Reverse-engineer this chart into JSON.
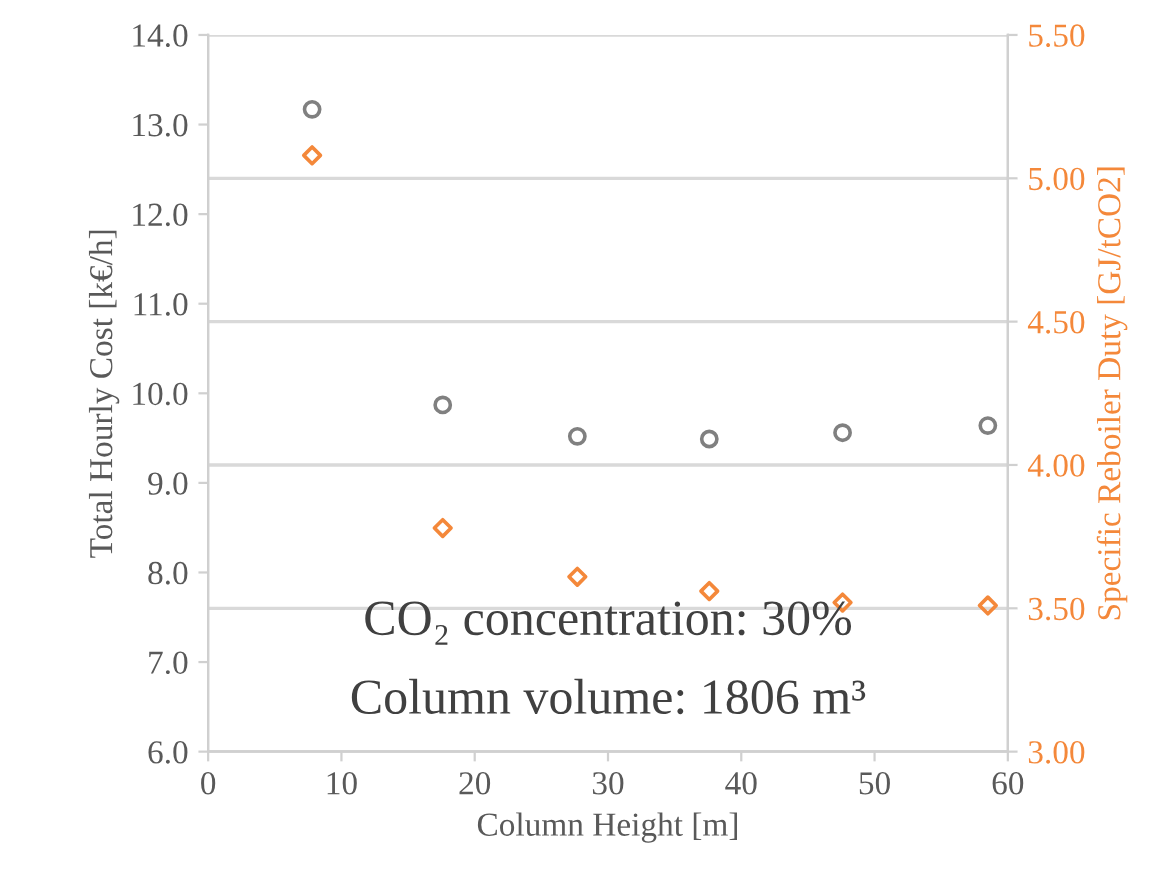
{
  "chart_data": {
    "type": "scatter",
    "xlabel": "Column Height [m]",
    "ylabel": "Total Hourly Cost [k€/h]",
    "y2label": "Specific Reboiler Duty [GJ/tCO2]",
    "x": [
      7.8,
      17.6,
      27.7,
      37.6,
      47.6,
      58.5
    ],
    "series": [
      {
        "color": "#808080",
        "marker": "circle",
        "values": [
          13.17,
          9.87,
          9.52,
          9.49,
          9.56,
          9.64
        ]
      },
      {
        "color": "#f4883a",
        "marker": "diamond",
        "axis": "y2",
        "values": [
          5.08,
          3.78,
          3.61,
          3.56,
          3.52,
          3.51
        ]
      }
    ],
    "xlim": [
      0,
      60
    ],
    "xticks": [
      0,
      10,
      20,
      30,
      40,
      50,
      60
    ],
    "ylim": [
      6,
      14
    ],
    "yticks": [
      {
        "value": 6,
        "label": "6.0"
      },
      {
        "value": 7,
        "label": "7.0"
      },
      {
        "value": 8,
        "label": "8.0"
      },
      {
        "value": 9,
        "label": "9.0"
      },
      {
        "value": 10,
        "label": "10.0"
      },
      {
        "value": 11,
        "label": "11.0"
      },
      {
        "value": 12,
        "label": "12.0"
      },
      {
        "value": 13,
        "label": "13.0"
      },
      {
        "value": 14,
        "label": "14.0"
      }
    ],
    "y2lim": [
      3,
      5.5
    ],
    "y2ticks": [
      {
        "value": 3,
        "label": "3.00"
      },
      {
        "value": 3.5,
        "label": "3.50"
      },
      {
        "value": 4,
        "label": "4.00"
      },
      {
        "value": 4.5,
        "label": "4.50"
      },
      {
        "value": 5,
        "label": "5.00"
      },
      {
        "value": 5.5,
        "label": "5.50"
      }
    ],
    "grid": "y",
    "legend": false,
    "annotations": [
      "CO₂ concentration: 30%",
      "Column volume: 1806 m³"
    ]
  }
}
